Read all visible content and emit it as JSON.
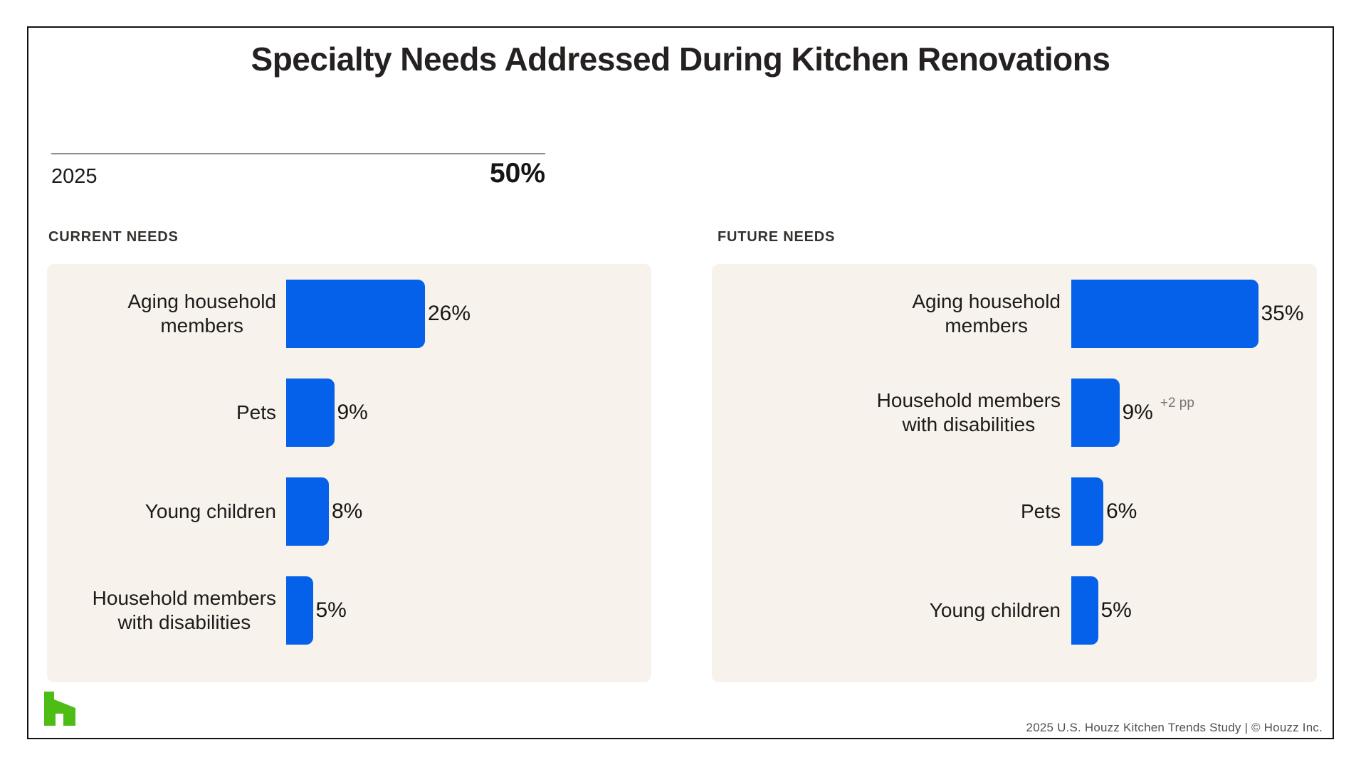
{
  "header": {
    "title": "Specialty Needs Addressed During Kitchen Renovations"
  },
  "stat": {
    "year": "2025",
    "value": "50%"
  },
  "chart_data": [
    {
      "type": "bar",
      "title": "CURRENT NEEDS",
      "orientation": "horizontal",
      "unit": "percent",
      "value_suffix": "%",
      "xlim": [
        0,
        40
      ],
      "grid": false,
      "legend": "none",
      "bar_color": "#0561ea",
      "categories": [
        "Aging household members",
        "Pets",
        "Young children",
        "Household members with disabilities"
      ],
      "values": [
        26,
        9,
        8,
        5
      ],
      "rows": [
        {
          "label": "Aging household\nmembers",
          "value": 26
        },
        {
          "label": "Pets",
          "value": 9
        },
        {
          "label": "Young children",
          "value": 8
        },
        {
          "label": "Household members\nwith disabilities",
          "value": 5
        }
      ]
    },
    {
      "type": "bar",
      "title": "FUTURE NEEDS",
      "orientation": "horizontal",
      "unit": "percent",
      "value_suffix": "%",
      "xlim": [
        0,
        40
      ],
      "grid": false,
      "legend": "none",
      "bar_color": "#0561ea",
      "categories": [
        "Aging household members",
        "Household members with disabilities",
        "Pets",
        "Young children"
      ],
      "values": [
        35,
        9,
        6,
        5
      ],
      "rows": [
        {
          "label": "Aging household\nmembers",
          "value": 35
        },
        {
          "label": "Household members\nwith disabilities",
          "value": 9,
          "annotation": "+2 pp"
        },
        {
          "label": "Pets",
          "value": 6
        },
        {
          "label": "Young children",
          "value": 5
        }
      ]
    }
  ],
  "footer": {
    "credit": "2025 U.S. Houzz Kitchen Trends Study  |  © Houzz Inc."
  },
  "colors": {
    "bar_blue": "#0561ea",
    "panel_beige": "#f7f2ec",
    "logo_green": "#4dbc15",
    "frame_black": "#121212"
  }
}
